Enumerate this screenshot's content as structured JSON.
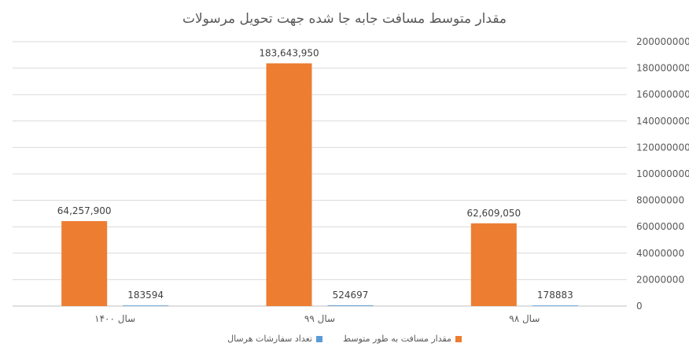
{
  "chart_data": {
    "type": "bar",
    "title": "مقدار متوسط مسافت جابه جا شده جهت تحویل مرسولات",
    "categories": [
      "سال ۱۴۰۰",
      "سال ۹۹",
      "سال ۹۸"
    ],
    "series": [
      {
        "name": "مقدار مسافت به طور متوسط",
        "color": "#ED7D31",
        "values": [
          64257900,
          183643950,
          62609050
        ],
        "labels": [
          "64,257,900",
          "183,643,950",
          "62,609,050"
        ]
      },
      {
        "name": "تعداد سفارشات هرسال",
        "color": "#5B9BD5",
        "values": [
          183594,
          524697,
          178883
        ],
        "labels": [
          "183594",
          "524697",
          "178883"
        ]
      }
    ],
    "ylim": [
      0,
      200000000
    ],
    "yticks": [
      "0",
      "20000000",
      "40000000",
      "60000000",
      "80000000",
      "100000000",
      "120000000",
      "140000000",
      "160000000",
      "180000000",
      "200000000"
    ],
    "y_axis_side": "right",
    "grid": true,
    "legend_position": "bottom"
  }
}
